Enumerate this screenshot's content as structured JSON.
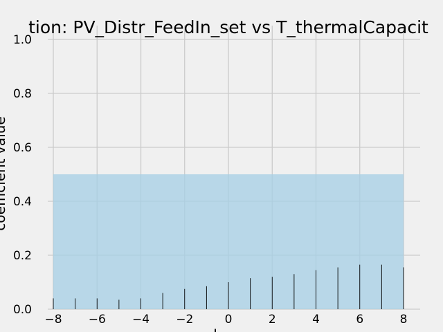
{
  "figure": {
    "background": "#f0f0f0"
  },
  "chart_data": {
    "type": "bar",
    "title": "tion: PV_Distr_FeedIn_set vs T_thermalCapacit",
    "xlabel": "l",
    "ylabel": "coefficient value",
    "xlim": [
      -8,
      8
    ],
    "ylim": [
      0,
      1
    ],
    "xticks": [
      -8,
      -6,
      -4,
      -2,
      0,
      2,
      4,
      6,
      8
    ],
    "yticks": [
      0.0,
      0.2,
      0.4,
      0.6,
      0.8,
      1.0
    ],
    "xtick_labels": [
      "−8",
      "−6",
      "−4",
      "−2",
      "0",
      "2",
      "4",
      "6",
      "8"
    ],
    "ytick_labels": [
      "0.0",
      "0.2",
      "0.4",
      "0.6",
      "0.8",
      "1.0"
    ],
    "grid": true,
    "confidence_band": {
      "lower": 0,
      "upper": 0.5,
      "color": "#a6cfe6"
    },
    "stem_color": "#000000",
    "grid_color": "#cbcbcb",
    "x": [
      -8,
      -7,
      -6,
      -5,
      -4,
      -3,
      -2,
      -1,
      0,
      1,
      2,
      3,
      4,
      5,
      6,
      7,
      8
    ],
    "values": [
      0.04,
      0.04,
      0.04,
      0.035,
      0.04,
      0.06,
      0.075,
      0.085,
      0.1,
      0.115,
      0.12,
      0.13,
      0.145,
      0.155,
      0.165,
      0.165,
      0.155
    ]
  }
}
